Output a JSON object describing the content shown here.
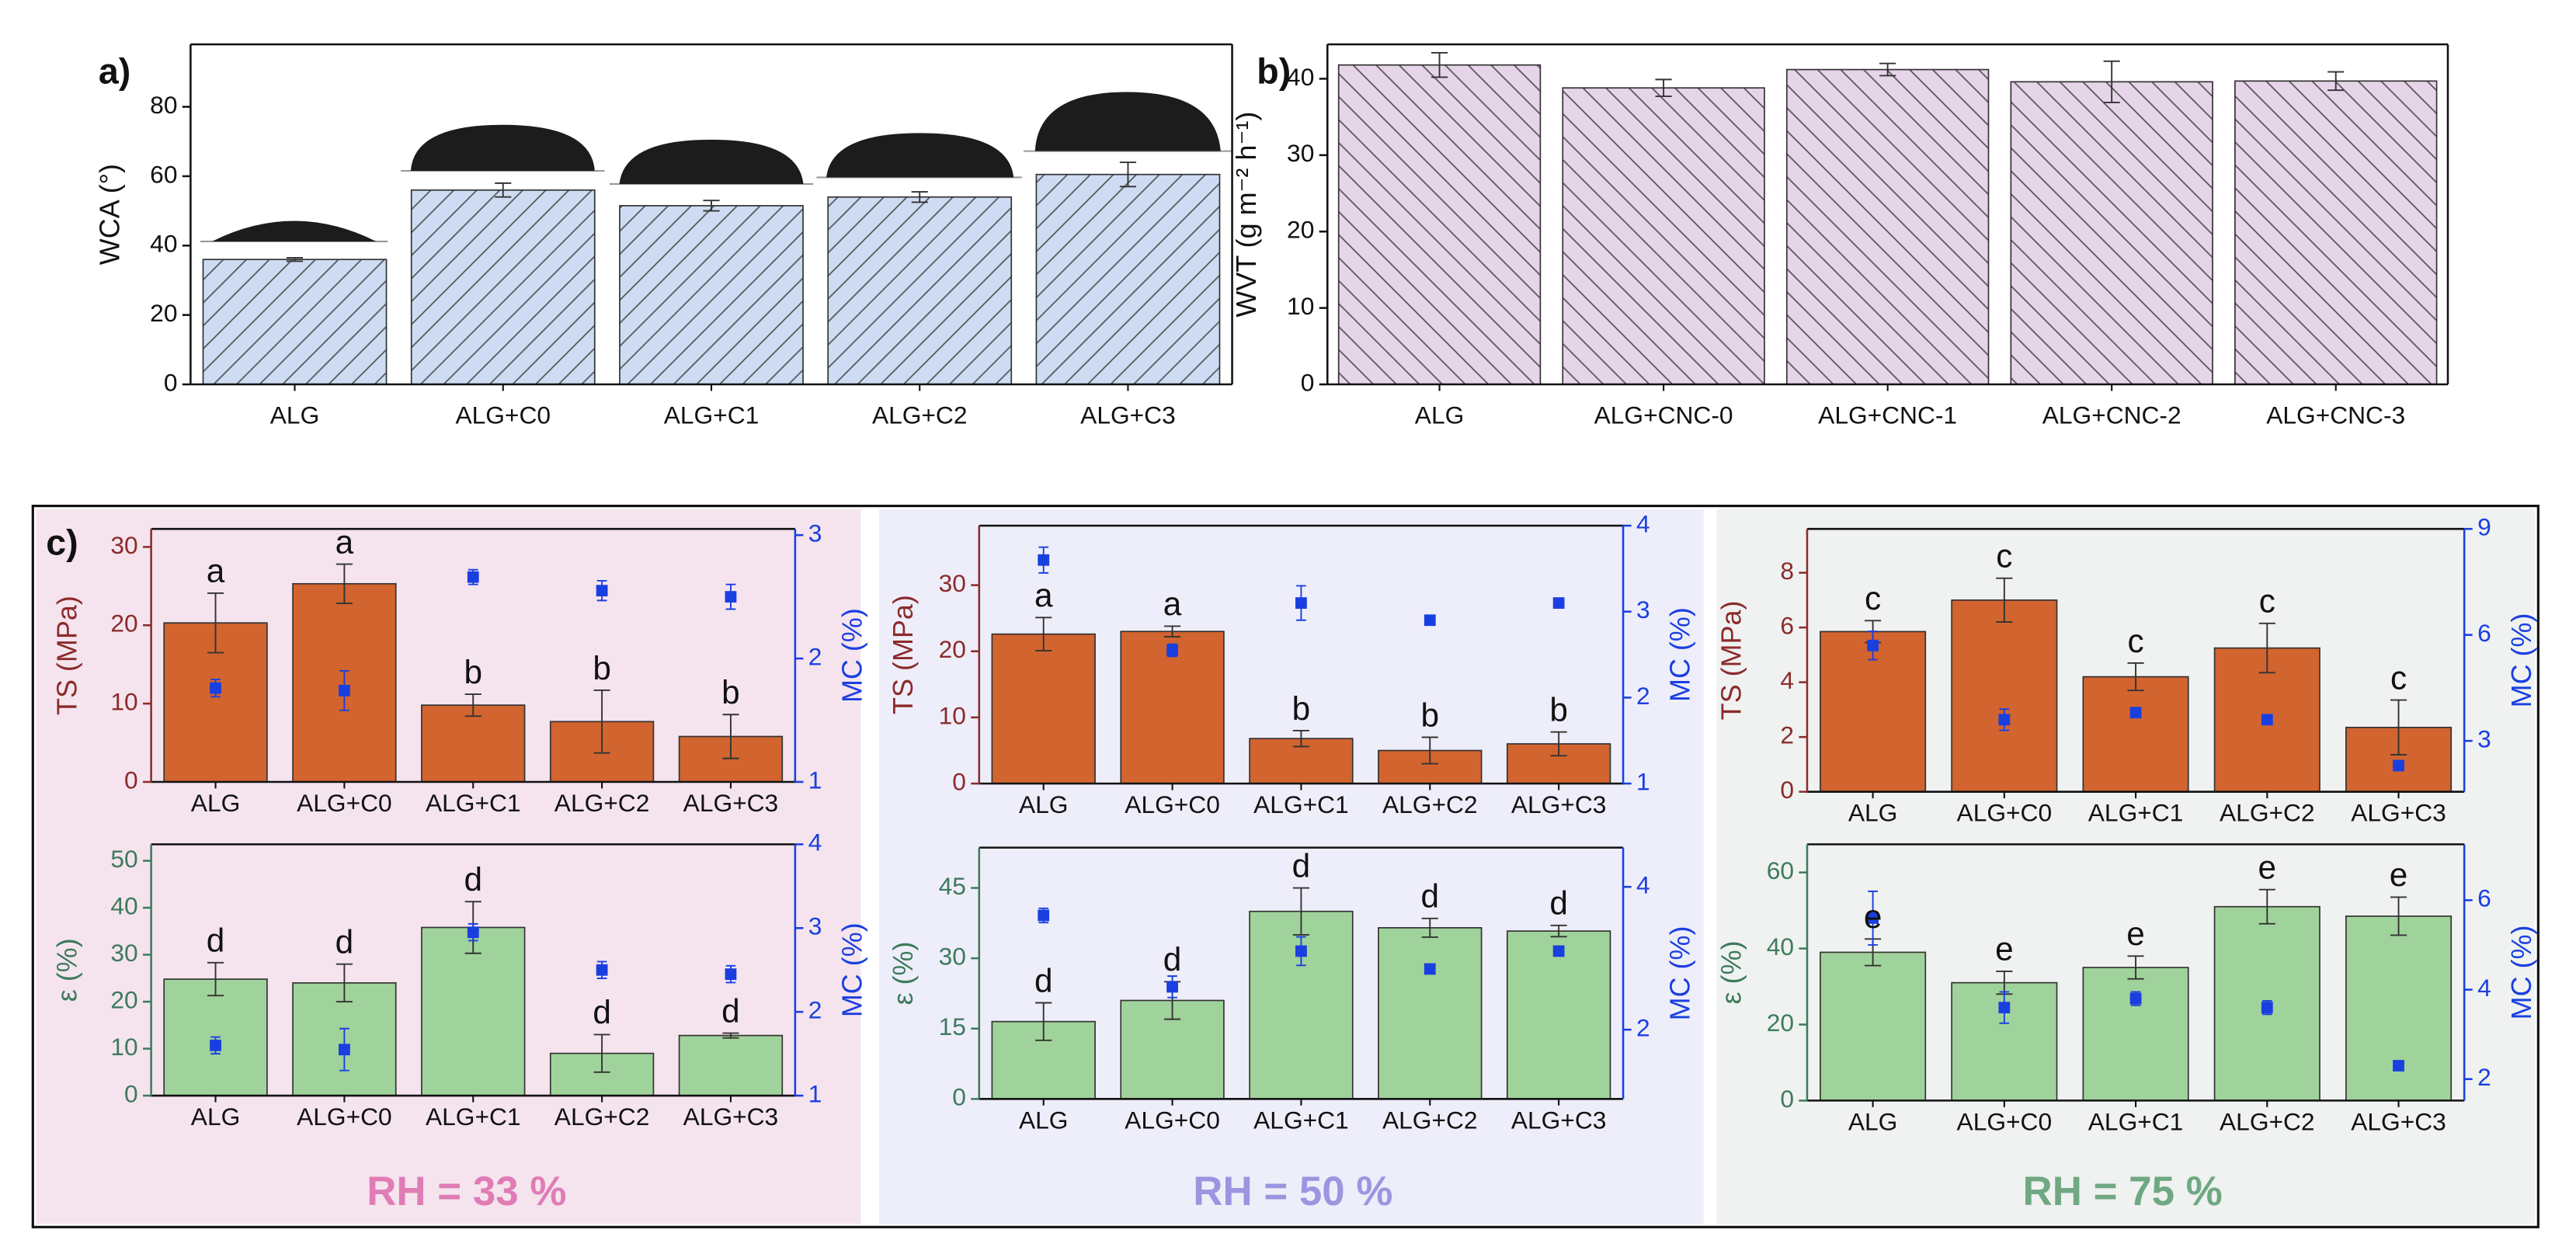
{
  "chart_data": [
    {
      "type": "bar",
      "label": "a)",
      "ylabel": "WCA (°)",
      "hatch": "/",
      "categories": [
        "ALG",
        "ALG+C0",
        "ALG+C1",
        "ALG+C2",
        "ALG+C3"
      ],
      "ylim": [
        0,
        98
      ],
      "yticks": [
        0,
        20,
        40,
        60,
        80
      ],
      "series": [
        {
          "color": "#cddcf3",
          "values": [
            36,
            56,
            51.5,
            54,
            60.5
          ],
          "errors": [
            0.5,
            2,
            1.5,
            1.5,
            3.5
          ]
        }
      ]
    },
    {
      "type": "bar",
      "label": "b)",
      "ylabel": "WVT (g m⁻² h⁻¹)",
      "hatch": "\\",
      "categories": [
        "ALG",
        "ALG+CNC-0",
        "ALG+CNC-1",
        "ALG+CNC-2",
        "ALG+CNC-3"
      ],
      "ylim": [
        0,
        44.5
      ],
      "yticks": [
        0,
        10,
        20,
        30,
        40
      ],
      "series": [
        {
          "color": "#e6d4e9",
          "values": [
            41.8,
            38.8,
            41.2,
            39.6,
            39.7
          ],
          "errors": [
            1.6,
            1.1,
            0.8,
            2.7,
            1.2
          ]
        }
      ]
    },
    {
      "type": "bar",
      "ylabel": "TS (MPa)",
      "y2label": "MC (%)",
      "ycolor": "#8b2b2b",
      "y2color": "#1a3fe0",
      "categories": [
        "ALG",
        "ALG+C0",
        "ALG+C1",
        "ALG+C2",
        "ALG+C3"
      ],
      "ylim": [
        0,
        32.3
      ],
      "yticks": [
        0,
        10,
        20,
        30
      ],
      "y2lim": [
        1,
        3.05
      ],
      "y2ticks": [
        1,
        2,
        3
      ],
      "annotations": [
        "a",
        "a",
        "b",
        "b",
        "b"
      ],
      "series": [
        {
          "color": "#d2642f",
          "values": [
            20.3,
            25.3,
            9.8,
            7.7,
            5.8
          ],
          "errors": [
            3.8,
            2.5,
            1.4,
            4,
            2.8
          ]
        },
        {
          "type": "scatter",
          "axis": "y2",
          "color": "#1a3fe0",
          "values": [
            1.76,
            1.74,
            2.66,
            2.55,
            2.5
          ],
          "errors": [
            0.07,
            0.16,
            0.06,
            0.08,
            0.1
          ]
        }
      ]
    },
    {
      "type": "bar",
      "ylabel": "ε (%)",
      "y2label": "MC (%)",
      "ycolor": "#3e7b5c",
      "y2color": "#1a3fe0",
      "categories": [
        "ALG",
        "ALG+C0",
        "ALG+C1",
        "ALG+C2",
        "ALG+C3"
      ],
      "ylim": [
        0,
        53.5
      ],
      "yticks": [
        0,
        10,
        20,
        30,
        40,
        50
      ],
      "y2lim": [
        1,
        4
      ],
      "y2ticks": [
        1,
        2,
        3,
        4
      ],
      "annotations": [
        "d",
        "d",
        "d",
        "d",
        "d"
      ],
      "series": [
        {
          "color": "#a0d39b",
          "values": [
            24.8,
            24,
            35.8,
            9,
            12.8
          ],
          "errors": [
            3.5,
            4,
            5.5,
            4,
            0.5
          ]
        },
        {
          "type": "scatter",
          "axis": "y2",
          "color": "#1a3fe0",
          "values": [
            1.6,
            1.55,
            2.95,
            2.5,
            2.45
          ],
          "errors": [
            0.1,
            0.25,
            0.1,
            0.1,
            0.1
          ]
        }
      ]
    },
    {
      "type": "bar",
      "ylabel": "TS (MPa)",
      "y2label": "MC (%)",
      "ycolor": "#8b2b2b",
      "y2color": "#1a3fe0",
      "categories": [
        "ALG",
        "ALG+C0",
        "ALG+C1",
        "ALG+C2",
        "ALG+C3"
      ],
      "ylim": [
        0,
        39
      ],
      "yticks": [
        0,
        10,
        20,
        30
      ],
      "y2lim": [
        1,
        4
      ],
      "y2ticks": [
        1,
        2,
        3,
        4
      ],
      "annotations": [
        "a",
        "a",
        "b",
        "b",
        "b"
      ],
      "series": [
        {
          "color": "#d2642f",
          "values": [
            22.6,
            23,
            6.8,
            5,
            6
          ],
          "errors": [
            2.5,
            0.8,
            1.2,
            2,
            1.8
          ]
        },
        {
          "type": "scatter",
          "axis": "y2",
          "color": "#1a3fe0",
          "values": [
            3.6,
            2.55,
            3.1,
            2.9,
            3.1
          ],
          "errors": [
            0.15,
            0.07,
            0.2,
            0.05,
            0
          ]
        }
      ]
    },
    {
      "type": "bar",
      "ylabel": "ε (%)",
      "y2label": "MC (%)",
      "ycolor": "#3e7b5c",
      "y2color": "#1a3fe0",
      "categories": [
        "ALG",
        "ALG+C0",
        "ALG+C1",
        "ALG+C2",
        "ALG+C3"
      ],
      "ylim": [
        0,
        53.6
      ],
      "yticks": [
        0,
        15,
        30,
        45
      ],
      "y2lim": [
        1.03,
        4.55
      ],
      "y2ticks": [
        2,
        4
      ],
      "annotations": [
        "d",
        "d",
        "d",
        "d",
        "d"
      ],
      "series": [
        {
          "color": "#a0d39b",
          "values": [
            16.5,
            21,
            40,
            36.5,
            35.8
          ],
          "errors": [
            4,
            4,
            5,
            2,
            1.2
          ]
        },
        {
          "type": "scatter",
          "axis": "y2",
          "color": "#1a3fe0",
          "values": [
            3.6,
            2.6,
            3.1,
            2.85,
            3.1
          ],
          "errors": [
            0.1,
            0.15,
            0.2,
            0.05,
            0
          ]
        }
      ]
    },
    {
      "type": "bar",
      "ylabel": "TS (MPa)",
      "y2label": "MC (%)",
      "ycolor": "#8b2b2b",
      "y2color": "#1a3fe0",
      "categories": [
        "ALG",
        "ALG+C0",
        "ALG+C1",
        "ALG+C2",
        "ALG+C3"
      ],
      "ylim": [
        0,
        9.6
      ],
      "yticks": [
        0,
        2,
        4,
        6,
        8
      ],
      "y2lim": [
        1.56,
        9
      ],
      "y2ticks": [
        3,
        6,
        9
      ],
      "annotations": [
        "c",
        "c",
        "c",
        "c",
        "c"
      ],
      "series": [
        {
          "color": "#d2642f",
          "values": [
            5.85,
            7,
            4.2,
            5.25,
            2.35
          ],
          "errors": [
            0.4,
            0.8,
            0.5,
            0.9,
            1
          ]
        },
        {
          "type": "scatter",
          "axis": "y2",
          "color": "#1a3fe0",
          "values": [
            5.7,
            3.6,
            3.8,
            3.6,
            2.3
          ],
          "errors": [
            0.4,
            0.3,
            0.1,
            0.1,
            0
          ]
        }
      ]
    },
    {
      "type": "bar",
      "ylabel": "ε (%)",
      "y2label": "MC (%)",
      "ycolor": "#3e7b5c",
      "y2color": "#1a3fe0",
      "categories": [
        "ALG",
        "ALG+C0",
        "ALG+C1",
        "ALG+C2",
        "ALG+C3"
      ],
      "ylim": [
        0,
        67.4
      ],
      "yticks": [
        0,
        20,
        40,
        60
      ],
      "y2lim": [
        1.52,
        7.25
      ],
      "y2ticks": [
        2,
        4,
        6
      ],
      "annotations": [
        "e",
        "e",
        "e",
        "e",
        "e"
      ],
      "series": [
        {
          "color": "#a0d39b",
          "values": [
            39,
            31,
            35,
            51,
            48.5
          ],
          "errors": [
            3.5,
            3,
            3,
            4.5,
            5
          ]
        },
        {
          "type": "scatter",
          "axis": "y2",
          "color": "#1a3fe0",
          "values": [
            5.6,
            3.6,
            3.8,
            3.6,
            2.3
          ],
          "errors": [
            0.6,
            0.35,
            0.15,
            0.15,
            0
          ]
        }
      ]
    }
  ],
  "panel_c": {
    "label": "c)",
    "rh_labels": [
      "RH = 33 %",
      "RH = 50 %",
      "RH = 75 %"
    ]
  }
}
